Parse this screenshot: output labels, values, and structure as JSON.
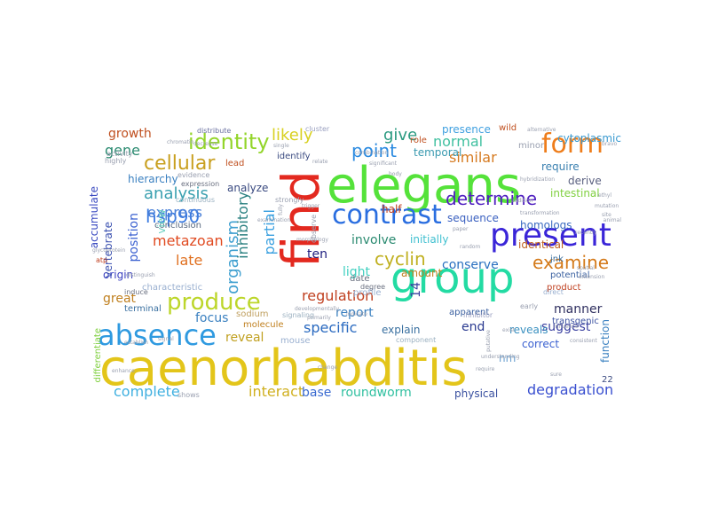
{
  "word_cloud": {
    "words": [
      {
        "text": "caenorhabditis",
        "color": "#e3c51a"
      },
      {
        "text": "elegans",
        "color": "#55e23a"
      },
      {
        "text": "find",
        "color": "#e3291f"
      },
      {
        "text": "group",
        "color": "#23dba3"
      },
      {
        "text": "present",
        "color": "#3a25d8"
      },
      {
        "text": "absence",
        "color": "#2f9ae0"
      },
      {
        "text": "form",
        "color": "#ee7d1b"
      },
      {
        "text": "contrast",
        "color": "#2a6ee0"
      },
      {
        "text": "produce",
        "color": "#bcd62a"
      },
      {
        "text": "identity",
        "color": "#93d52a"
      },
      {
        "text": "cellular",
        "color": "#c9a020"
      },
      {
        "text": "determine",
        "color": "#5020c0"
      },
      {
        "text": "examine",
        "color": "#d47a1a"
      },
      {
        "text": "cyclin",
        "color": "#c0b020"
      },
      {
        "text": "point",
        "color": "#2a8ae0"
      },
      {
        "text": "similar",
        "color": "#d57a20"
      },
      {
        "text": "likely",
        "color": "#d8d020"
      },
      {
        "text": "give",
        "color": "#2a9a80"
      },
      {
        "text": "normal",
        "color": "#40c0a0"
      },
      {
        "text": "hsp90",
        "color": "#3a7ae0"
      },
      {
        "text": "analysis",
        "color": "#3aa0b0"
      },
      {
        "text": "express",
        "color": "#4a80d8"
      },
      {
        "text": "gene",
        "color": "#2a8a70"
      },
      {
        "text": "growth",
        "color": "#c05020"
      },
      {
        "text": "metazoan",
        "color": "#e04a20"
      },
      {
        "text": "late",
        "color": "#e07020"
      },
      {
        "text": "position",
        "color": "#3a60d0"
      },
      {
        "text": "organism",
        "color": "#40a0d0"
      },
      {
        "text": "inhibitory",
        "color": "#2a8080"
      },
      {
        "text": "partial",
        "color": "#3aa0e0"
      },
      {
        "text": "involve",
        "color": "#2a8a70"
      },
      {
        "text": "ten",
        "color": "#202080"
      },
      {
        "text": "light",
        "color": "#40d0c0"
      },
      {
        "text": "conserve",
        "color": "#2a70c0"
      },
      {
        "text": "regulation",
        "color": "#c04020"
      },
      {
        "text": "report",
        "color": "#3a80c0"
      },
      {
        "text": "specific",
        "color": "#2a6ac0"
      },
      {
        "text": "end",
        "color": "#2a3a90"
      },
      {
        "text": "suggest",
        "color": "#3a40a0"
      },
      {
        "text": "manner",
        "color": "#303060"
      },
      {
        "text": "reveal",
        "color": "#c0a020"
      },
      {
        "text": "focus",
        "color": "#3a80c0"
      },
      {
        "text": "interact",
        "color": "#d0b020"
      },
      {
        "text": "complete",
        "color": "#40b0e0"
      },
      {
        "text": "base",
        "color": "#3a6ad0"
      },
      {
        "text": "roundworm",
        "color": "#30c0a0"
      },
      {
        "text": "degradation",
        "color": "#3a50d0"
      },
      {
        "text": "physical",
        "color": "#3a50a0"
      },
      {
        "text": "great",
        "color": "#c08020"
      },
      {
        "text": "origin",
        "color": "#3a40c0"
      },
      {
        "text": "analyze",
        "color": "#3a4a80"
      },
      {
        "text": "require",
        "color": "#3a80b0"
      },
      {
        "text": "derive",
        "color": "#5a6080"
      },
      {
        "text": "intestinal",
        "color": "#80d040"
      },
      {
        "text": "homologs",
        "color": "#3a6ac0"
      },
      {
        "text": "sequence",
        "color": "#3a60c0"
      },
      {
        "text": "identical",
        "color": "#c06020"
      },
      {
        "text": "initially",
        "color": "#40c0d0"
      },
      {
        "text": "half",
        "color": "#c04020"
      },
      {
        "text": "cytoplasmic",
        "color": "#3a9ad0"
      },
      {
        "text": "presence",
        "color": "#40a0e0"
      },
      {
        "text": "temporal",
        "color": "#3a9ab0"
      },
      {
        "text": "role",
        "color": "#c05020"
      },
      {
        "text": "identify",
        "color": "#3a4a80"
      },
      {
        "text": "wild",
        "color": "#c05020"
      },
      {
        "text": "cluster",
        "color": "#9aa0c0"
      },
      {
        "text": "minor",
        "color": "#9aa0b0"
      },
      {
        "text": "accumulate",
        "color": "#3a4ac0"
      },
      {
        "text": "vertebrate",
        "color": "#3a50b0"
      },
      {
        "text": "hierarchy",
        "color": "#3a80c0"
      },
      {
        "text": "conclusion",
        "color": "#5a6a80"
      },
      {
        "text": "view",
        "color": "#6ad0c0"
      },
      {
        "text": "characteristic",
        "color": "#9ab0d0"
      },
      {
        "text": "terminal",
        "color": "#3a70a0"
      },
      {
        "text": "sodium",
        "color": "#c0a060"
      },
      {
        "text": "molecule",
        "color": "#c08020"
      },
      {
        "text": "mouse",
        "color": "#9ab0d0"
      },
      {
        "text": "explain",
        "color": "#3a70a0"
      },
      {
        "text": "amount",
        "color": "#c08020"
      },
      {
        "text": "date",
        "color": "#6a7080"
      },
      {
        "text": "profile",
        "color": "#9ab0d0"
      },
      {
        "text": "reveals",
        "color": "#3a90c0"
      },
      {
        "text": "apparent",
        "color": "#3a60a0"
      },
      {
        "text": "product",
        "color": "#c04020"
      },
      {
        "text": "correct",
        "color": "#3a60d0"
      },
      {
        "text": "function",
        "color": "#3a80c0"
      },
      {
        "text": "transgenic",
        "color": "#3a50a0"
      },
      {
        "text": "jnk",
        "color": "#3a70a0"
      },
      {
        "text": "potential",
        "color": "#3a60a0"
      },
      {
        "text": "nm",
        "color": "#6aa0d0"
      },
      {
        "text": "22",
        "color": "#3a4a80"
      },
      {
        "text": "14",
        "color": "#3a40a0"
      },
      {
        "text": "lead",
        "color": "#c05020"
      },
      {
        "text": "evidence",
        "color": "#9aa0b0"
      },
      {
        "text": "expression",
        "color": "#6a7080"
      },
      {
        "text": "continuous",
        "color": "#9ab0c0"
      },
      {
        "text": "distribute",
        "color": "#6a70a0"
      },
      {
        "text": "differentiate",
        "color": "#80d040"
      },
      {
        "text": "strongly",
        "color": "#9aa0b0"
      },
      {
        "text": "observe",
        "color": "#9aa0b0"
      },
      {
        "text": "inhibitor",
        "color": "#9aa0c0"
      },
      {
        "text": "component",
        "color": "#9ab0c0"
      },
      {
        "text": "degree",
        "color": "#6a7080"
      },
      {
        "text": "direct",
        "color": "#9ab0d0"
      },
      {
        "text": "early",
        "color": "#9aa0b0"
      },
      {
        "text": "induce",
        "color": "#6a7080"
      },
      {
        "text": "highly",
        "color": "#9aa0b0"
      },
      {
        "text": "activity",
        "color": "#9aa0b0"
      },
      {
        "text": "signaling",
        "color": "#9ab0c0"
      },
      {
        "text": "atp",
        "color": "#c04020"
      },
      {
        "text": "shows",
        "color": "#9aa0b0"
      },
      {
        "text": "addition",
        "color": "#9aa0b0"
      },
      {
        "text": "random",
        "color": "#9aa0b0"
      },
      {
        "text": "indicate",
        "color": "#9aa0b0"
      },
      {
        "text": "distinguish",
        "color": "#9aa0b0"
      },
      {
        "text": "establish",
        "color": "#9aa0b0"
      },
      {
        "text": "transformation",
        "color": "#9aa0b0"
      },
      {
        "text": "change",
        "color": "#9aa0b0"
      },
      {
        "text": "morphology",
        "color": "#9aa0b0"
      },
      {
        "text": "alternative",
        "color": "#9aa0b0"
      },
      {
        "text": "decrease",
        "color": "#9aa0b0"
      },
      {
        "text": "chromatin",
        "color": "#9aa0b0"
      },
      {
        "text": "developmentally",
        "color": "#9aa0b0"
      },
      {
        "text": "enhance",
        "color": "#9aa0b0"
      },
      {
        "text": "significant",
        "color": "#9aa0b0"
      },
      {
        "text": "influence",
        "color": "#9aa0b0"
      },
      {
        "text": "combination",
        "color": "#9aa0b0"
      },
      {
        "text": "primarily",
        "color": "#9aa0b0"
      },
      {
        "text": "extension",
        "color": "#9aa0b0"
      },
      {
        "text": "consistent",
        "color": "#9aa0b0"
      },
      {
        "text": "spatial",
        "color": "#9aa0b0"
      },
      {
        "text": "recently",
        "color": "#9aa0b0"
      },
      {
        "text": "fully",
        "color": "#9aa0b0"
      },
      {
        "text": "putative",
        "color": "#9aa0b0"
      },
      {
        "text": "single",
        "color": "#9aa0b0"
      },
      {
        "text": "glycoprotein",
        "color": "#9aa0b0"
      },
      {
        "text": "hybridization",
        "color": "#9aa0b0"
      },
      {
        "text": "signal",
        "color": "#9aa0b0"
      },
      {
        "text": "examination",
        "color": "#9aa0b0"
      },
      {
        "text": "understanding",
        "color": "#9aa0b0"
      },
      {
        "text": "exist",
        "color": "#9aa0b0"
      },
      {
        "text": "mutation",
        "color": "#9aa0b0"
      },
      {
        "text": "animal",
        "color": "#9aa0b0"
      },
      {
        "text": "trigger",
        "color": "#9aa0b0"
      },
      {
        "text": "body",
        "color": "#9aa0b0"
      },
      {
        "text": "paper",
        "color": "#9aa0b0"
      },
      {
        "text": "ethyl",
        "color": "#9aa0b0"
      },
      {
        "text": "bravo",
        "color": "#9aa0b0"
      },
      {
        "text": "relate",
        "color": "#9aa0b0"
      },
      {
        "text": "site",
        "color": "#9aa0b0"
      },
      {
        "text": "require",
        "color": "#9aa0b0"
      },
      {
        "text": "sure",
        "color": "#9aa0b0"
      }
    ]
  }
}
